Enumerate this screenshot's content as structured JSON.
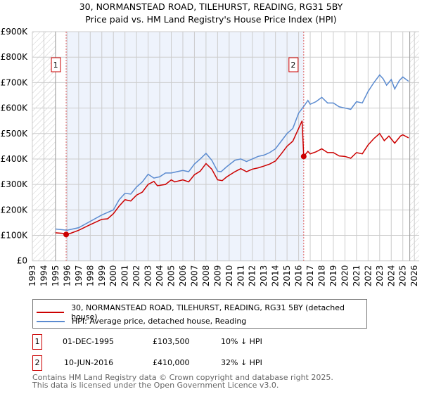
{
  "chart_data": {
    "type": "line",
    "title": "30, NORMANSTEAD ROAD, TILEHURST, READING, RG31 5BY",
    "subtitle": "Price paid vs. HM Land Registry's House Price Index (HPI)",
    "xlim": [
      1993,
      2026
    ],
    "ylim": [
      0,
      900000
    ],
    "y_ticks": [
      {
        "v": 0,
        "label": "£0"
      },
      {
        "v": 100000,
        "label": "£100K"
      },
      {
        "v": 200000,
        "label": "£200K"
      },
      {
        "v": 300000,
        "label": "£300K"
      },
      {
        "v": 400000,
        "label": "£400K"
      },
      {
        "v": 500000,
        "label": "£500K"
      },
      {
        "v": 600000,
        "label": "£600K"
      },
      {
        "v": 700000,
        "label": "£700K"
      },
      {
        "v": 800000,
        "label": "£800K"
      },
      {
        "v": 900000,
        "label": "£900K"
      }
    ],
    "x_ticks": [
      "1993",
      "1994",
      "1995",
      "1996",
      "1997",
      "1998",
      "1999",
      "2000",
      "2001",
      "2002",
      "2003",
      "2004",
      "2005",
      "2006",
      "2007",
      "2008",
      "2009",
      "2010",
      "2011",
      "2012",
      "2013",
      "2014",
      "2015",
      "2016",
      "2017",
      "2018",
      "2019",
      "2020",
      "2021",
      "2022",
      "2023",
      "2024",
      "2025",
      "2026"
    ],
    "series": [
      {
        "name": "HPI: Average price, detached house, Reading",
        "color": "#5b8bd0",
        "points": [
          [
            1995,
            125000
          ],
          [
            1996,
            120000
          ],
          [
            1997,
            130000
          ],
          [
            1998,
            155000
          ],
          [
            1999,
            180000
          ],
          [
            2000,
            200000
          ],
          [
            2000.5,
            240000
          ],
          [
            2001,
            265000
          ],
          [
            2001.5,
            262000
          ],
          [
            2002,
            290000
          ],
          [
            2002.5,
            310000
          ],
          [
            2003,
            340000
          ],
          [
            2003.5,
            325000
          ],
          [
            2004,
            330000
          ],
          [
            2004.5,
            345000
          ],
          [
            2005,
            345000
          ],
          [
            2005.5,
            350000
          ],
          [
            2006,
            355000
          ],
          [
            2006.5,
            350000
          ],
          [
            2007,
            380000
          ],
          [
            2007.5,
            400000
          ],
          [
            2008,
            422000
          ],
          [
            2008.5,
            395000
          ],
          [
            2009,
            352000
          ],
          [
            2009.3,
            350000
          ],
          [
            2009.8,
            370000
          ],
          [
            2010.5,
            395000
          ],
          [
            2011,
            400000
          ],
          [
            2011.5,
            390000
          ],
          [
            2012,
            400000
          ],
          [
            2012.5,
            410000
          ],
          [
            2013,
            415000
          ],
          [
            2013.5,
            425000
          ],
          [
            2014,
            440000
          ],
          [
            2014.5,
            470000
          ],
          [
            2015,
            500000
          ],
          [
            2015.5,
            520000
          ],
          [
            2016,
            580000
          ],
          [
            2016.5,
            610000
          ],
          [
            2016.8,
            630000
          ],
          [
            2017,
            615000
          ],
          [
            2017.5,
            625000
          ],
          [
            2018,
            642000
          ],
          [
            2018.5,
            620000
          ],
          [
            2019,
            620000
          ],
          [
            2019.5,
            605000
          ],
          [
            2020,
            600000
          ],
          [
            2020.5,
            595000
          ],
          [
            2021,
            625000
          ],
          [
            2021.5,
            620000
          ],
          [
            2022,
            665000
          ],
          [
            2022.5,
            700000
          ],
          [
            2023,
            730000
          ],
          [
            2023.3,
            715000
          ],
          [
            2023.6,
            690000
          ],
          [
            2024,
            712000
          ],
          [
            2024.3,
            675000
          ],
          [
            2024.7,
            708000
          ],
          [
            2025,
            722000
          ],
          [
            2025.5,
            705000
          ]
        ]
      },
      {
        "name": "30, NORMANSTEAD ROAD, TILEHURST, READING, RG31 5BY (detached house)",
        "color": "#cc0000",
        "points": [
          [
            1995,
            110000
          ],
          [
            1995.6,
            108000
          ],
          [
            1995.92,
            103500
          ],
          [
            1996.3,
            108000
          ],
          [
            1997,
            120000
          ],
          [
            1998,
            142000
          ],
          [
            1999,
            163000
          ],
          [
            1999.5,
            165000
          ],
          [
            2000,
            185000
          ],
          [
            2000.5,
            215000
          ],
          [
            2001,
            240000
          ],
          [
            2001.5,
            235000
          ],
          [
            2002,
            258000
          ],
          [
            2002.5,
            270000
          ],
          [
            2003,
            300000
          ],
          [
            2003.5,
            312000
          ],
          [
            2003.8,
            295000
          ],
          [
            2004.5,
            300000
          ],
          [
            2005,
            318000
          ],
          [
            2005.3,
            310000
          ],
          [
            2006,
            318000
          ],
          [
            2006.5,
            310000
          ],
          [
            2007,
            338000
          ],
          [
            2007.5,
            352000
          ],
          [
            2008,
            382000
          ],
          [
            2008.5,
            360000
          ],
          [
            2009,
            318000
          ],
          [
            2009.4,
            315000
          ],
          [
            2009.8,
            330000
          ],
          [
            2010.5,
            350000
          ],
          [
            2011,
            362000
          ],
          [
            2011.5,
            350000
          ],
          [
            2012,
            360000
          ],
          [
            2012.5,
            365000
          ],
          [
            2013,
            372000
          ],
          [
            2013.5,
            380000
          ],
          [
            2014,
            392000
          ],
          [
            2014.5,
            420000
          ],
          [
            2015,
            450000
          ],
          [
            2015.5,
            470000
          ],
          [
            2016,
            520000
          ],
          [
            2016.3,
            550000
          ],
          [
            2016.44,
            410000
          ],
          [
            2016.8,
            430000
          ],
          [
            2017,
            420000
          ],
          [
            2017.5,
            428000
          ],
          [
            2018,
            440000
          ],
          [
            2018.5,
            425000
          ],
          [
            2019,
            425000
          ],
          [
            2019.5,
            412000
          ],
          [
            2020,
            410000
          ],
          [
            2020.5,
            403000
          ],
          [
            2021,
            425000
          ],
          [
            2021.5,
            420000
          ],
          [
            2022,
            455000
          ],
          [
            2022.5,
            480000
          ],
          [
            2023,
            500000
          ],
          [
            2023.4,
            472000
          ],
          [
            2023.8,
            490000
          ],
          [
            2024.3,
            462000
          ],
          [
            2024.8,
            490000
          ],
          [
            2025,
            495000
          ],
          [
            2025.5,
            483000
          ]
        ]
      }
    ],
    "sales": [
      {
        "label": "1",
        "x": 1995.92,
        "y": 103500
      },
      {
        "label": "2",
        "x": 2016.44,
        "y": 410000
      }
    ],
    "shaded_range": [
      1995.92,
      2016.44
    ],
    "hatched_before": 1995,
    "hatched_after": 2025.6,
    "legend": [
      "30, NORMANSTEAD ROAD, TILEHURST, READING, RG31 5BY (detached house)",
      "HPI: Average price, detached house, Reading"
    ]
  },
  "transactions": [
    {
      "num": "1",
      "date": "01-DEC-1995",
      "price": "£103,500",
      "hpi": "10% ↓ HPI"
    },
    {
      "num": "2",
      "date": "10-JUN-2016",
      "price": "£410,000",
      "hpi": "32% ↓ HPI"
    }
  ],
  "footer": {
    "line1": "Contains HM Land Registry data © Crown copyright and database right 2025.",
    "line2": "This data is licensed under the Open Government Licence v3.0."
  }
}
